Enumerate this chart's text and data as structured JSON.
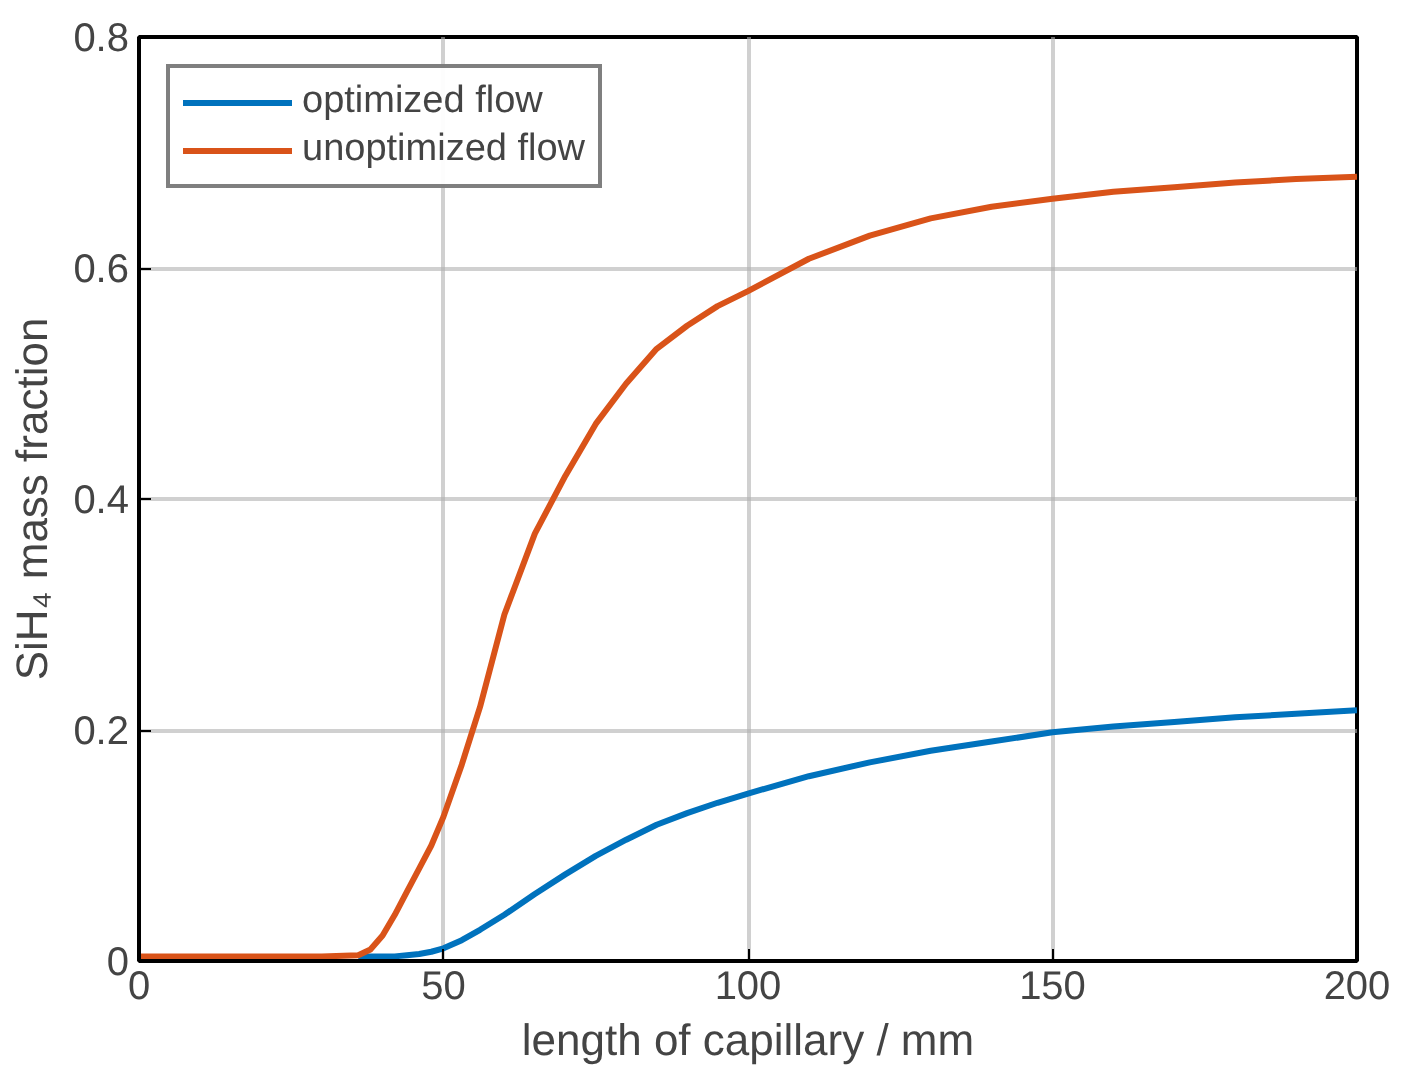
{
  "chart_data": {
    "type": "line",
    "xlabel": "length of capillary / mm",
    "ylabel": "SiH₄ mass fraction",
    "xlim": [
      0,
      200
    ],
    "ylim": [
      0,
      0.8
    ],
    "xticks": [
      0,
      50,
      100,
      150,
      200
    ],
    "yticks": [
      0,
      0.2,
      0.4,
      0.6,
      0.8
    ],
    "grid": true,
    "legend": "top left",
    "line_style": "solid",
    "marker": "none",
    "x": [
      0,
      10,
      20,
      30,
      36,
      38,
      40,
      42,
      44,
      46,
      48,
      50,
      53,
      56,
      60,
      65,
      70,
      75,
      80,
      85,
      90,
      95,
      100,
      110,
      120,
      130,
      140,
      150,
      160,
      170,
      180,
      190,
      200
    ],
    "series": [
      {
        "name": "optimized flow",
        "color": "#0072bd",
        "values": [
          null,
          null,
          null,
          null,
          0.004,
          0.004,
          0.004,
          0.004,
          0.005,
          0.006,
          0.008,
          0.011,
          0.018,
          0.027,
          0.04,
          0.058,
          0.075,
          0.091,
          0.105,
          0.118,
          0.128,
          0.137,
          0.145,
          0.16,
          0.172,
          0.182,
          0.19,
          0.198,
          0.203,
          0.207,
          0.211,
          0.214,
          0.217
        ]
      },
      {
        "name": "unoptimized flow",
        "color": "#d95319",
        "values": [
          0.004,
          0.004,
          0.004,
          0.004,
          0.005,
          0.01,
          0.022,
          0.04,
          0.06,
          0.08,
          0.1,
          0.125,
          0.17,
          0.22,
          0.3,
          0.37,
          0.42,
          0.465,
          0.5,
          0.53,
          0.55,
          0.567,
          0.58,
          0.608,
          0.628,
          0.643,
          0.653,
          0.66,
          0.666,
          0.67,
          0.674,
          0.677,
          0.679
        ]
      }
    ]
  }
}
